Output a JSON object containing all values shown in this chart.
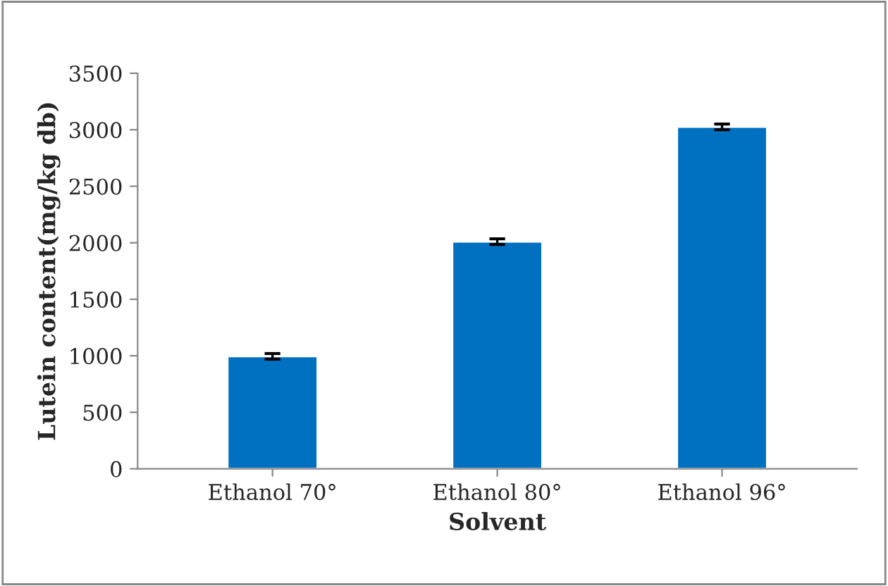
{
  "chart_data": {
    "type": "bar",
    "xlabel": "Solvent",
    "ylabel": "Lutein content(mg/kg db)",
    "categories": [
      "Ethanol 70°",
      "Ethanol 80°",
      "Ethanol 96°"
    ],
    "values": [
      995,
      2010,
      3025
    ],
    "errors": [
      25,
      25,
      25
    ],
    "color": "#0070c0",
    "ylim": [
      0,
      3500
    ],
    "yticks": [
      0,
      500,
      1000,
      1500,
      2000,
      2500,
      3000,
      3500
    ],
    "grid": false
  }
}
